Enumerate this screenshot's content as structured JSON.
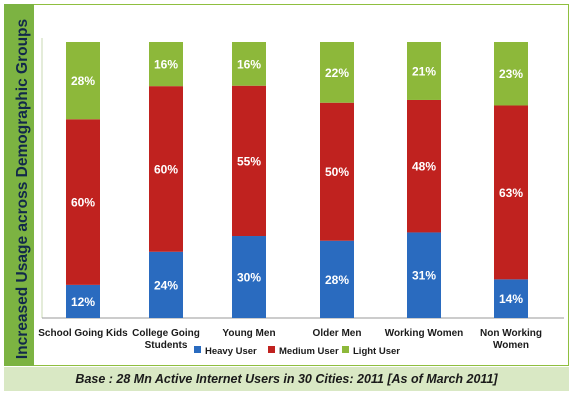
{
  "chart_data": {
    "type": "bar",
    "stacked": true,
    "percent_stacked": true,
    "ylabel": "Increased Usage across Demographic Groups",
    "categories": [
      "School Going Kids",
      "College Going Students",
      "Young Men",
      "Older Men",
      "Working Women",
      "Non Working Women"
    ],
    "category_label_lines": [
      [
        "School Going Kids"
      ],
      [
        "College Going",
        "Students"
      ],
      [
        "Young Men"
      ],
      [
        "Older Men"
      ],
      [
        "Working Women"
      ],
      [
        "Non Working",
        "Women"
      ]
    ],
    "series": [
      {
        "name": "Heavy User",
        "color": "#2a6bbf",
        "values": [
          12,
          24,
          30,
          28,
          31,
          14
        ]
      },
      {
        "name": "Medium User",
        "color": "#c0221f",
        "values": [
          60,
          60,
          55,
          50,
          48,
          63
        ]
      },
      {
        "name": "Light User",
        "color": "#8db83a",
        "values": [
          28,
          16,
          16,
          22,
          21,
          23
        ]
      }
    ],
    "value_label_suffix": "%",
    "legend_position": "bottom"
  },
  "footer": "Base : 28 Mn Active Internet Users in 30 Cities: 2011 [As of March 2011]"
}
